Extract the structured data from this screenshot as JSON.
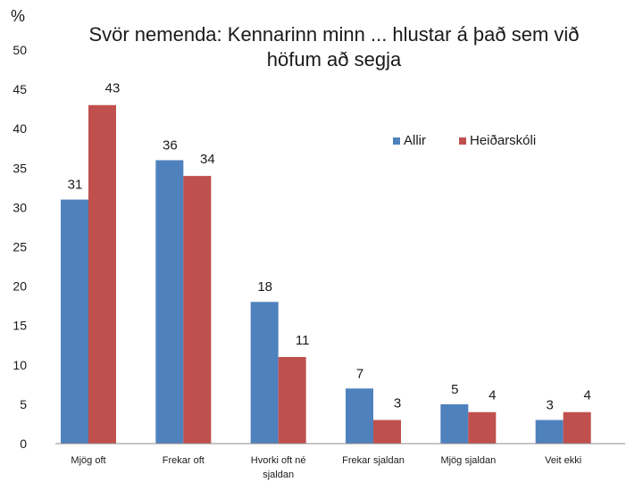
{
  "chart_data": {
    "type": "bar",
    "title_lines": [
      "Svör nemenda: Kennarinn minn ... hlustar á það sem við",
      "höfum að segja"
    ],
    "ylabel": "%",
    "ylim": [
      0,
      50
    ],
    "yticks": [
      0,
      5,
      10,
      15,
      20,
      25,
      30,
      35,
      40,
      45,
      50
    ],
    "categories": [
      [
        "Mjög oft"
      ],
      [
        "Frekar oft"
      ],
      [
        "Hvorki oft né",
        "sjaldan"
      ],
      [
        "Frekar sjaldan"
      ],
      [
        "Mjög sjaldan"
      ],
      [
        "Veit ekki"
      ]
    ],
    "series": [
      {
        "name": "Allir",
        "color": "#4f81bd",
        "values": [
          31,
          36,
          18,
          7,
          5,
          3
        ]
      },
      {
        "name": "Heiðarskóli",
        "color": "#c0504d",
        "values": [
          43,
          34,
          11,
          3,
          4,
          4
        ]
      }
    ],
    "grid": false,
    "legend_position": "top-right"
  }
}
